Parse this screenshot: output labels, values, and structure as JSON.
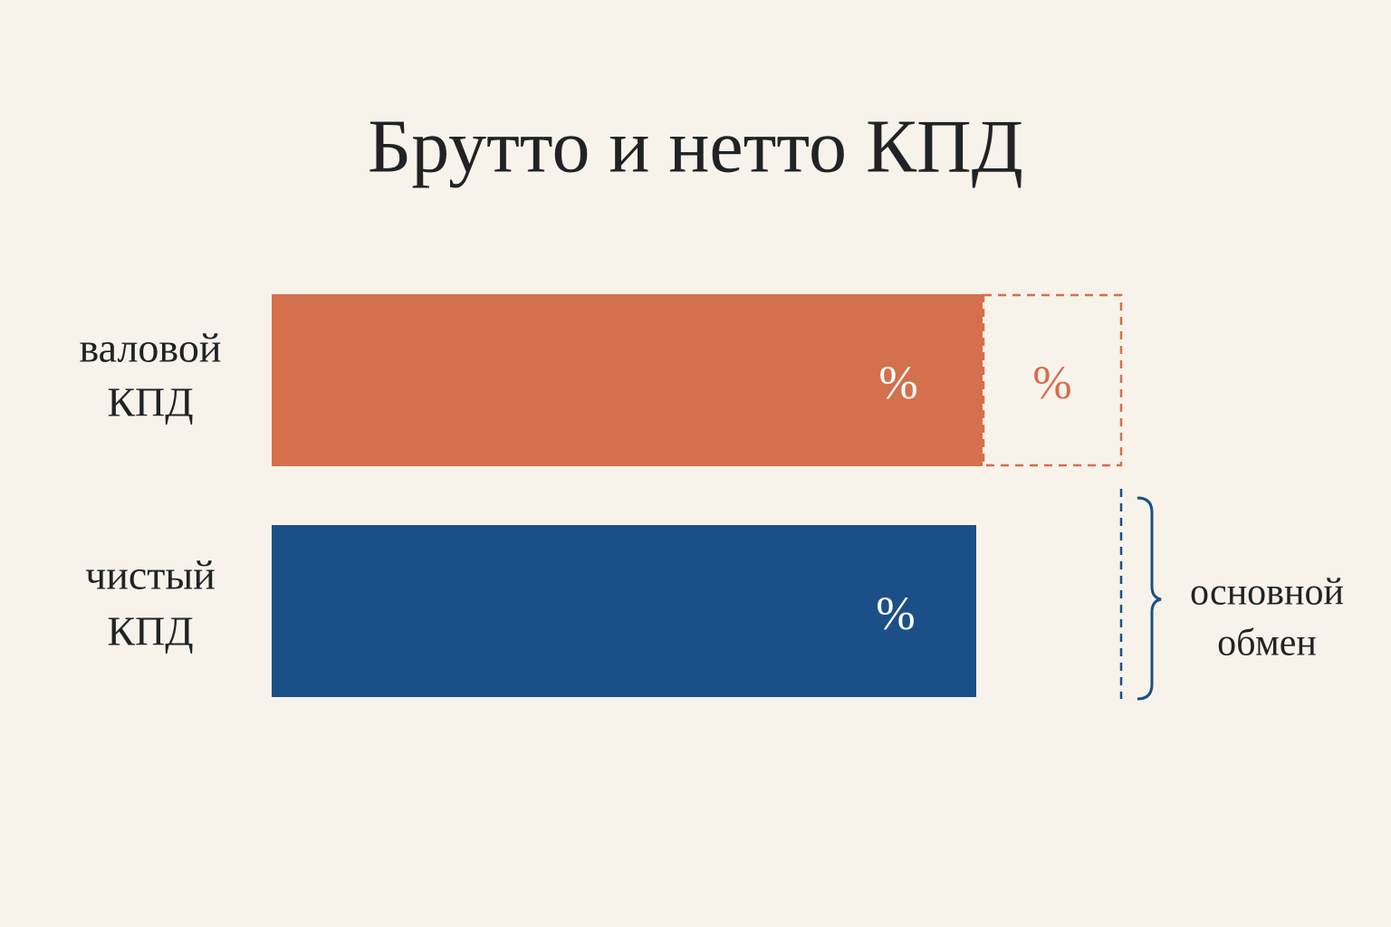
{
  "title": "Брутто и нетто КПД",
  "rows": [
    {
      "label": [
        "валовой",
        "КПД"
      ],
      "bar_text": "%",
      "extra_text": "%"
    },
    {
      "label": [
        "чистый",
        "КПД"
      ],
      "bar_text": "%"
    }
  ],
  "bracket_label": [
    "основной",
    "обмен"
  ]
}
